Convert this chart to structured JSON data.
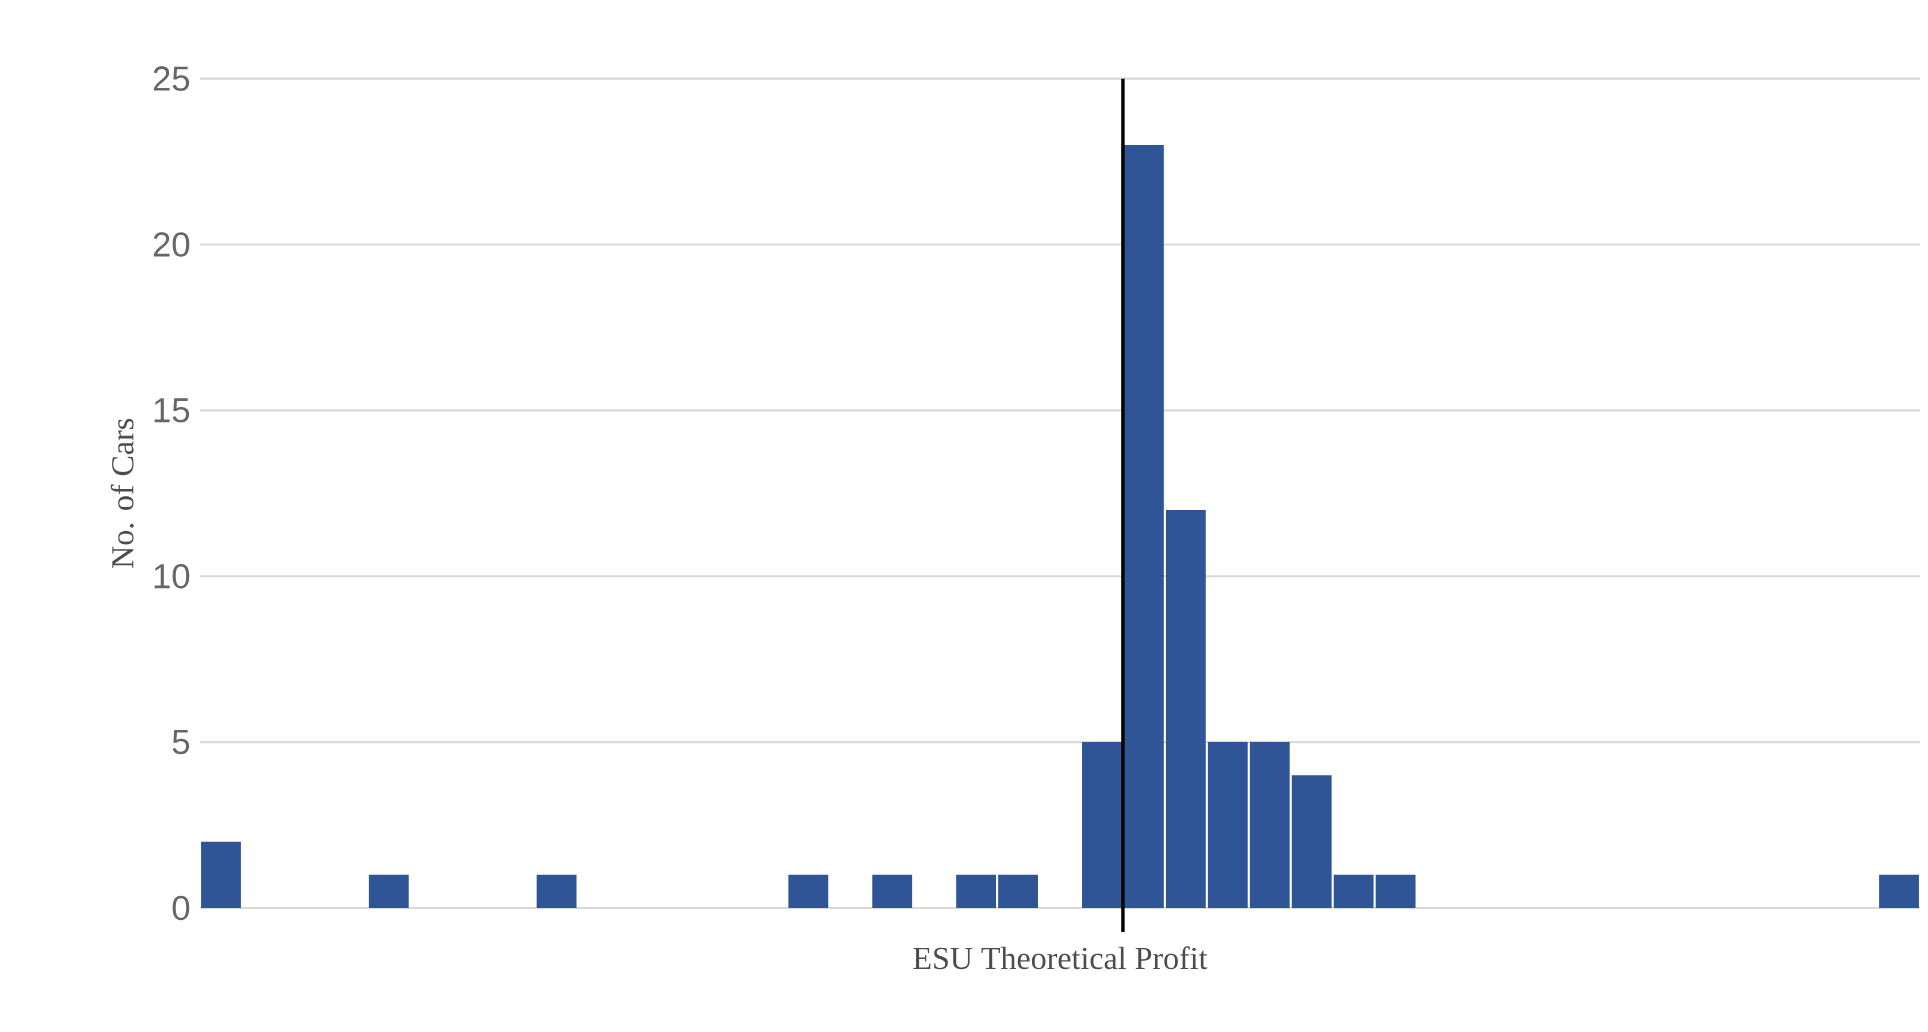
{
  "chart_data": {
    "type": "bar",
    "xlabel": "ESU Theoretical Profit",
    "ylabel": "No. of Cars",
    "categories": [
      null,
      null,
      null,
      null,
      null,
      null,
      null,
      null,
      null,
      null,
      null,
      null,
      null,
      null,
      null,
      null,
      null,
      null,
      null,
      null,
      null,
      null,
      null,
      null,
      null,
      null,
      null,
      null,
      null,
      null,
      null,
      null,
      null,
      null,
      null,
      null,
      null,
      null,
      null,
      null,
      null
    ],
    "values": [
      2,
      0,
      0,
      0,
      1,
      0,
      0,
      0,
      1,
      0,
      0,
      0,
      0,
      0,
      1,
      0,
      1,
      0,
      1,
      1,
      0,
      5,
      23,
      12,
      5,
      5,
      4,
      1,
      1,
      0,
      0,
      0,
      0,
      0,
      0,
      0,
      0,
      0,
      0,
      0,
      1
    ],
    "color": "#2f5597",
    "ylim": [
      0,
      25
    ],
    "yticks": [
      0,
      5,
      10,
      15,
      20,
      25
    ],
    "grid": "y"
  }
}
